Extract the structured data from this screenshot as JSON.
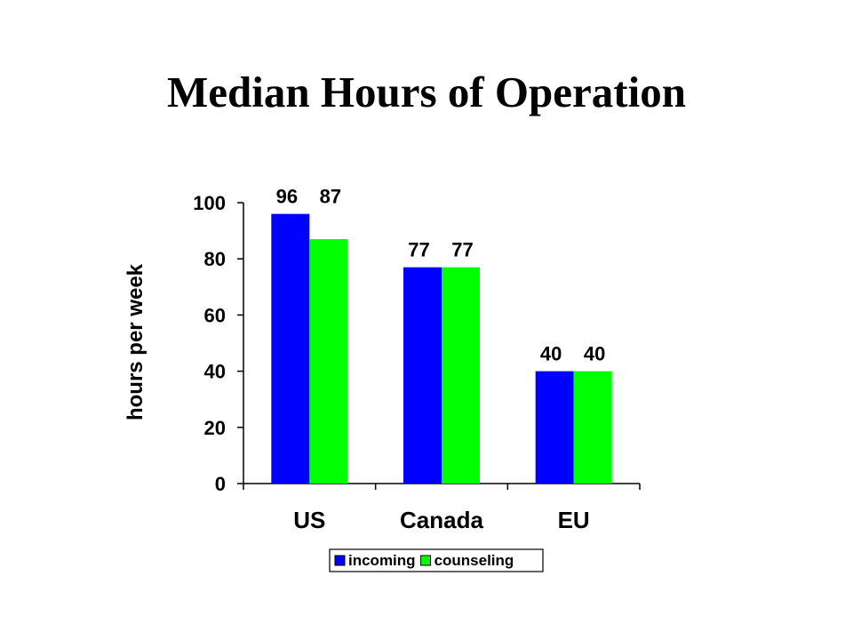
{
  "slide": {
    "title": "Median Hours of Operation"
  },
  "chart_data": {
    "type": "bar",
    "title": "",
    "xlabel": "",
    "ylabel": "hours per week",
    "categories": [
      "US",
      "Canada",
      "EU"
    ],
    "series": [
      {
        "name": "incoming",
        "color": "#0000ff",
        "values": [
          96,
          77,
          40
        ]
      },
      {
        "name": "counseling",
        "color": "#00ff00",
        "values": [
          87,
          77,
          40
        ]
      }
    ],
    "ylim": [
      0,
      100
    ],
    "yticks": [
      0,
      20,
      40,
      60,
      80,
      100
    ],
    "data_labels": true,
    "grid": false,
    "legend_position": "bottom"
  }
}
